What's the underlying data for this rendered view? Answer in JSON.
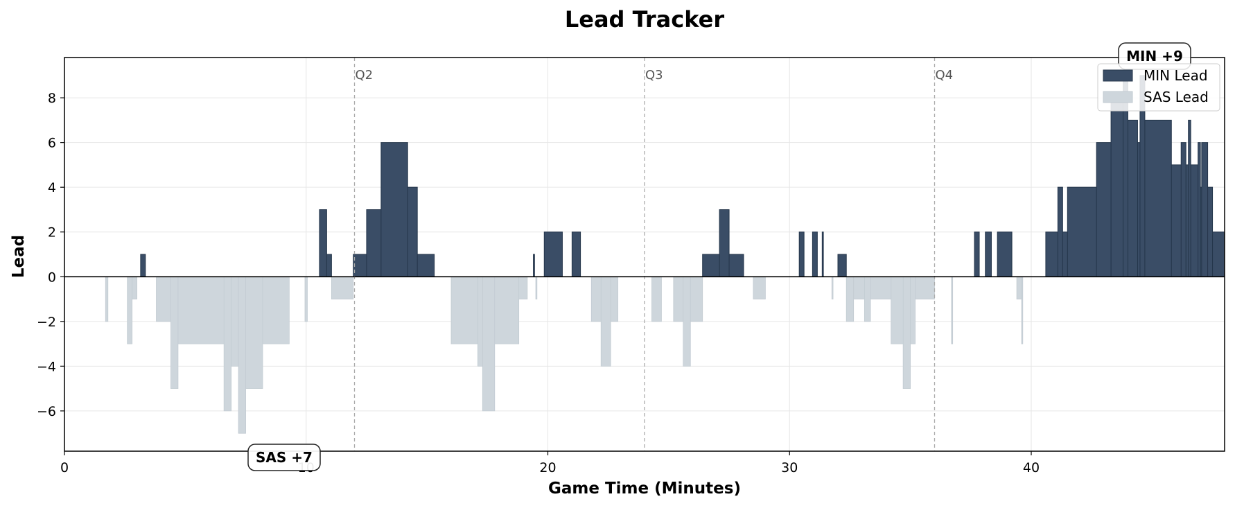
{
  "chart_data": {
    "type": "area",
    "title": "Lead Tracker",
    "xlabel": "Game Time (Minutes)",
    "ylabel": "Lead",
    "xlim": [
      0,
      48
    ],
    "ylim": [
      -7.8,
      9.8
    ],
    "x_ticks": [
      0,
      10,
      20,
      30,
      40
    ],
    "y_ticks": [
      -6,
      -4,
      -2,
      0,
      2,
      4,
      6,
      8
    ],
    "y_tick_labels": [
      "−6",
      "−4",
      "−2",
      "0",
      "2",
      "4",
      "6",
      "8"
    ],
    "grid": true,
    "legend_position": "top-right",
    "quarter_markers": [
      {
        "x": 12,
        "label": "Q2"
      },
      {
        "x": 24,
        "label": "Q3"
      },
      {
        "x": 36,
        "label": "Q4"
      }
    ],
    "series": [
      {
        "name": "MIN Lead",
        "color": "#3a4d66"
      },
      {
        "name": "SAS Lead",
        "color": "#ced6dc"
      }
    ],
    "lead_steps": [
      [
        0,
        0
      ],
      [
        1.7,
        -2
      ],
      [
        1.8,
        0
      ],
      [
        2.6,
        -3
      ],
      [
        2.8,
        -1
      ],
      [
        3.0,
        0
      ],
      [
        3.15,
        1
      ],
      [
        3.35,
        0
      ],
      [
        3.8,
        -2
      ],
      [
        4.4,
        -5
      ],
      [
        4.7,
        -3
      ],
      [
        6.6,
        -6
      ],
      [
        6.9,
        -4
      ],
      [
        7.2,
        -7
      ],
      [
        7.5,
        -5
      ],
      [
        8.2,
        -3
      ],
      [
        9.3,
        0
      ],
      [
        9.95,
        -2
      ],
      [
        10.05,
        0
      ],
      [
        10.55,
        3
      ],
      [
        10.85,
        1
      ],
      [
        11.05,
        -1
      ],
      [
        11.95,
        1
      ],
      [
        12.5,
        3
      ],
      [
        13.1,
        6
      ],
      [
        14.2,
        4
      ],
      [
        14.6,
        1
      ],
      [
        15.3,
        0
      ],
      [
        16.0,
        -3
      ],
      [
        17.1,
        -4
      ],
      [
        17.3,
        -6
      ],
      [
        17.8,
        -3
      ],
      [
        18.8,
        -1
      ],
      [
        19.15,
        0
      ],
      [
        19.4,
        1
      ],
      [
        19.45,
        0
      ],
      [
        19.5,
        -1
      ],
      [
        19.55,
        0
      ],
      [
        19.85,
        2
      ],
      [
        20.6,
        0
      ],
      [
        21.0,
        2
      ],
      [
        21.35,
        0
      ],
      [
        21.8,
        -2
      ],
      [
        22.2,
        -4
      ],
      [
        22.6,
        -2
      ],
      [
        22.9,
        0
      ],
      [
        24.3,
        -2
      ],
      [
        24.7,
        0
      ],
      [
        25.2,
        -2
      ],
      [
        25.6,
        -4
      ],
      [
        25.9,
        -2
      ],
      [
        26.4,
        1
      ],
      [
        27.1,
        3
      ],
      [
        27.5,
        1
      ],
      [
        28.1,
        0
      ],
      [
        28.5,
        -1
      ],
      [
        29.0,
        0
      ],
      [
        30.4,
        2
      ],
      [
        30.6,
        0
      ],
      [
        30.95,
        2
      ],
      [
        31.15,
        0
      ],
      [
        31.35,
        2
      ],
      [
        31.4,
        0
      ],
      [
        31.75,
        -1
      ],
      [
        31.8,
        0
      ],
      [
        32.0,
        1
      ],
      [
        32.35,
        -2
      ],
      [
        32.65,
        -1
      ],
      [
        33.1,
        -2
      ],
      [
        33.35,
        -1
      ],
      [
        34.2,
        -3
      ],
      [
        34.7,
        -5
      ],
      [
        35.0,
        -3
      ],
      [
        35.2,
        -1
      ],
      [
        36.0,
        0
      ],
      [
        36.7,
        -3
      ],
      [
        36.75,
        0
      ],
      [
        37.65,
        2
      ],
      [
        37.85,
        0
      ],
      [
        38.1,
        2
      ],
      [
        38.35,
        0
      ],
      [
        38.6,
        2
      ],
      [
        39.2,
        0
      ],
      [
        39.4,
        -1
      ],
      [
        39.6,
        -3
      ],
      [
        39.65,
        0
      ],
      [
        40.6,
        2
      ],
      [
        41.1,
        4
      ],
      [
        41.3,
        2
      ],
      [
        41.5,
        4
      ],
      [
        42.7,
        6
      ],
      [
        43.3,
        8
      ],
      [
        43.8,
        9
      ],
      [
        44.0,
        7
      ],
      [
        44.4,
        6
      ],
      [
        44.5,
        9
      ],
      [
        44.7,
        7
      ],
      [
        45.8,
        5
      ],
      [
        46.2,
        6
      ],
      [
        46.4,
        5
      ],
      [
        46.5,
        7
      ],
      [
        46.6,
        5
      ],
      [
        46.9,
        6
      ],
      [
        47.0,
        4
      ],
      [
        47.05,
        6
      ],
      [
        47.3,
        4
      ],
      [
        47.5,
        2
      ],
      [
        48.0,
        2
      ]
    ],
    "annotations": [
      {
        "text": "MIN +9",
        "x": 43.8,
        "y": 9
      },
      {
        "text": "SAS +7",
        "x": 7.2,
        "y": -7
      }
    ]
  }
}
